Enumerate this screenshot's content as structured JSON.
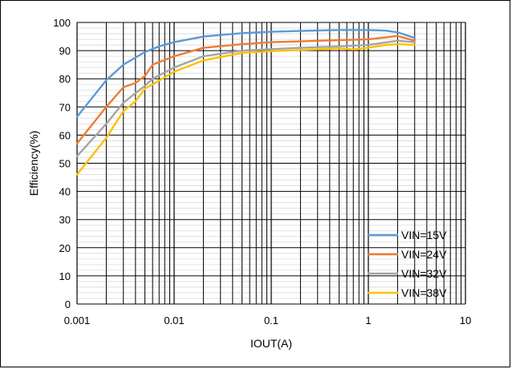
{
  "chart_data": {
    "type": "line",
    "title": "",
    "xlabel": "IOUT(A)",
    "ylabel": "Efficiency(%)",
    "x_scale": "log",
    "xlim": [
      0.001,
      10
    ],
    "ylim": [
      0,
      100
    ],
    "x_ticks": [
      "0.001",
      "0.01",
      "0.1",
      "1",
      "10"
    ],
    "y_ticks": [
      "0",
      "10",
      "20",
      "30",
      "40",
      "50",
      "60",
      "70",
      "80",
      "90",
      "100"
    ],
    "grid": true,
    "legend_position": "bottom-right",
    "series": [
      {
        "name": "VIN=15V",
        "color": "#5B9BD5",
        "x": [
          0.001,
          0.002,
          0.003,
          0.005,
          0.007,
          0.01,
          0.02,
          0.05,
          0.1,
          0.2,
          0.5,
          1,
          1.5,
          2,
          3
        ],
        "y": [
          66.5,
          79.5,
          85,
          89.5,
          91.5,
          93,
          95,
          96.2,
          96.7,
          97,
          97.3,
          97.3,
          97.1,
          96.5,
          94.5
        ]
      },
      {
        "name": "VIN=24V",
        "color": "#ED7D31",
        "x": [
          0.001,
          0.002,
          0.003,
          0.004,
          0.005,
          0.006,
          0.01,
          0.02,
          0.05,
          0.1,
          0.2,
          0.5,
          1,
          2,
          3
        ],
        "y": [
          57,
          70,
          77,
          78.5,
          81,
          85,
          88,
          91,
          92.3,
          93,
          93.3,
          93.7,
          94,
          95.2,
          93.5
        ]
      },
      {
        "name": "VIN=32V",
        "color": "#A5A5A5",
        "x": [
          0.001,
          0.002,
          0.003,
          0.005,
          0.006,
          0.01,
          0.02,
          0.05,
          0.1,
          0.2,
          0.5,
          1,
          2,
          3
        ],
        "y": [
          52.5,
          64,
          71.5,
          77.5,
          80,
          84,
          88,
          90,
          90.5,
          91,
          91.5,
          92,
          93.5,
          93
        ]
      },
      {
        "name": "VIN=38V",
        "color": "#FFC000",
        "x": [
          0.001,
          0.002,
          0.003,
          0.004,
          0.005,
          0.006,
          0.01,
          0.02,
          0.05,
          0.1,
          0.2,
          0.5,
          0.7,
          1,
          1.5,
          2,
          3
        ],
        "y": [
          46,
          59,
          68.5,
          72,
          76.5,
          78,
          82.5,
          86.5,
          89.2,
          89.8,
          90.2,
          90.8,
          90.4,
          91,
          92,
          92.3,
          92
        ]
      }
    ]
  }
}
